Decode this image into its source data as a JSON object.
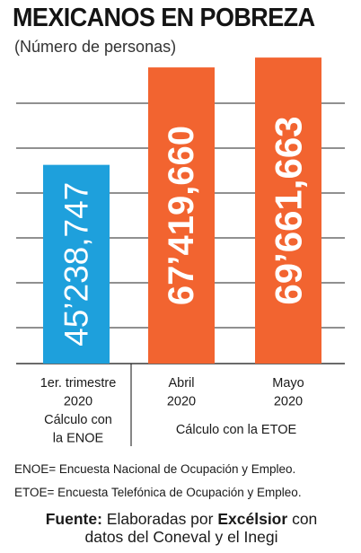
{
  "header": {
    "title": "MEXICANOS EN POBREZA",
    "subtitle": "(Número de personas)"
  },
  "chart_data": {
    "type": "bar",
    "title": "MEXICANOS EN POBREZA",
    "subtitle": "(Número de personas)",
    "values": [
      45238747,
      67419660,
      69661663
    ],
    "value_labels": [
      "45’238,747",
      "67’419,660",
      "69’661,663"
    ],
    "colors": [
      "#1ea0dc",
      "#f26430",
      "#f26430"
    ],
    "category_labels": [
      [
        "1er. trimestre",
        "2020",
        "Cálculo con",
        "la ENOE"
      ],
      [
        "Abril",
        "2020"
      ],
      [
        "Mayo",
        "2020"
      ]
    ],
    "group_label": "Cálculo con la ETOE",
    "ylim": [
      0,
      75000000
    ],
    "grid": true
  },
  "notes": {
    "enoe": "ENOE= Encuesta Nacional de Ocupación y Empleo.",
    "etoe": "ETOE= Encuesta Telefónica de Ocupación y Empleo."
  },
  "source": {
    "label": "Fuente:",
    "text1": "Elaboradas por",
    "brand": "Excélsior",
    "text2": "con",
    "line2": "datos del Coneval y el Inegi"
  }
}
